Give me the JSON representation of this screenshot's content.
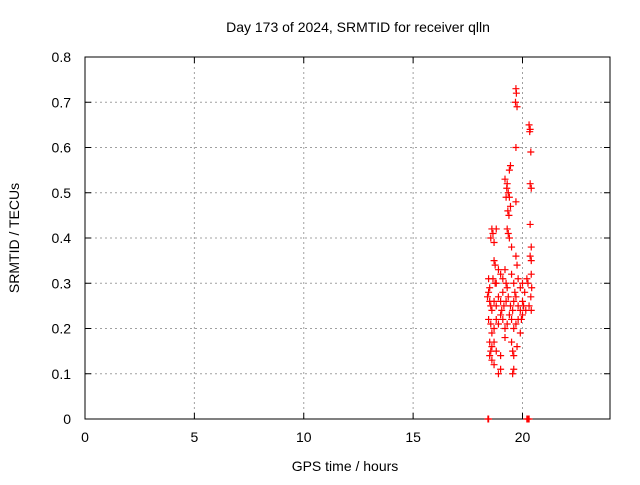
{
  "chart_data": {
    "type": "scatter",
    "title": "Day 173 of 2024, SRMTID for receiver qlln",
    "xlabel": "GPS time / hours",
    "ylabel": "SRMTID / TECUs",
    "xlim": [
      0,
      24
    ],
    "ylim": [
      0,
      0.8
    ],
    "xticks": [
      0,
      5,
      10,
      15,
      20
    ],
    "xtick_labels": [
      "0",
      "5",
      "10",
      "15",
      "20"
    ],
    "yticks": [
      0,
      0.1,
      0.2,
      0.3,
      0.4,
      0.5,
      0.6,
      0.7,
      0.8
    ],
    "ytick_labels": [
      "0",
      "0.1",
      "0.2",
      "0.3",
      "0.4",
      "0.5",
      "0.6",
      "0.7",
      "0.8"
    ],
    "grid": true,
    "marker": "plus",
    "color": "#ff0000",
    "series": [
      {
        "name": "SRMTID",
        "points": [
          [
            18.42,
            0.0
          ],
          [
            18.45,
            0.0
          ],
          [
            20.2,
            0.0
          ],
          [
            20.25,
            0.0
          ],
          [
            20.3,
            0.0
          ],
          [
            19.7,
            0.73
          ],
          [
            19.72,
            0.72
          ],
          [
            19.68,
            0.7
          ],
          [
            19.75,
            0.69
          ],
          [
            20.3,
            0.65
          ],
          [
            20.35,
            0.64
          ],
          [
            20.33,
            0.635
          ],
          [
            20.38,
            0.59
          ],
          [
            19.7,
            0.6
          ],
          [
            19.45,
            0.56
          ],
          [
            19.4,
            0.55
          ],
          [
            19.3,
            0.52
          ],
          [
            19.35,
            0.5
          ],
          [
            19.28,
            0.51
          ],
          [
            19.4,
            0.49
          ],
          [
            19.45,
            0.47
          ],
          [
            19.33,
            0.46
          ],
          [
            19.38,
            0.45
          ],
          [
            19.7,
            0.48
          ],
          [
            20.35,
            0.52
          ],
          [
            20.4,
            0.51
          ],
          [
            19.2,
            0.53
          ],
          [
            19.25,
            0.49
          ],
          [
            18.6,
            0.42
          ],
          [
            18.65,
            0.41
          ],
          [
            18.55,
            0.4
          ],
          [
            18.7,
            0.39
          ],
          [
            18.8,
            0.42
          ],
          [
            19.3,
            0.42
          ],
          [
            19.35,
            0.41
          ],
          [
            19.4,
            0.4
          ],
          [
            19.5,
            0.38
          ],
          [
            20.35,
            0.43
          ],
          [
            20.4,
            0.38
          ],
          [
            20.35,
            0.36
          ],
          [
            20.4,
            0.35
          ],
          [
            19.7,
            0.36
          ],
          [
            19.75,
            0.34
          ],
          [
            18.7,
            0.35
          ],
          [
            18.75,
            0.34
          ],
          [
            18.65,
            0.31
          ],
          [
            18.8,
            0.3
          ],
          [
            18.9,
            0.33
          ],
          [
            19.0,
            0.32
          ],
          [
            19.1,
            0.31
          ],
          [
            19.2,
            0.33
          ],
          [
            19.5,
            0.32
          ],
          [
            19.6,
            0.3
          ],
          [
            19.8,
            0.31
          ],
          [
            19.9,
            0.29
          ],
          [
            20.0,
            0.3
          ],
          [
            20.1,
            0.28
          ],
          [
            20.2,
            0.31
          ],
          [
            20.4,
            0.32
          ],
          [
            20.42,
            0.29
          ],
          [
            20.38,
            0.27
          ],
          [
            18.45,
            0.31
          ],
          [
            18.5,
            0.29
          ],
          [
            18.4,
            0.27
          ],
          [
            18.5,
            0.26
          ],
          [
            18.55,
            0.25
          ],
          [
            18.6,
            0.24
          ],
          [
            18.7,
            0.26
          ],
          [
            18.8,
            0.25
          ],
          [
            18.9,
            0.27
          ],
          [
            19.0,
            0.26
          ],
          [
            19.05,
            0.24
          ],
          [
            19.15,
            0.25
          ],
          [
            19.25,
            0.26
          ],
          [
            19.35,
            0.27
          ],
          [
            19.45,
            0.25
          ],
          [
            19.55,
            0.24
          ],
          [
            19.6,
            0.26
          ],
          [
            19.7,
            0.27
          ],
          [
            19.8,
            0.25
          ],
          [
            19.9,
            0.24
          ],
          [
            20.0,
            0.26
          ],
          [
            20.05,
            0.25
          ],
          [
            20.15,
            0.24
          ],
          [
            20.3,
            0.25
          ],
          [
            20.4,
            0.24
          ],
          [
            18.45,
            0.22
          ],
          [
            18.55,
            0.21
          ],
          [
            18.6,
            0.19
          ],
          [
            18.7,
            0.2
          ],
          [
            18.8,
            0.22
          ],
          [
            18.9,
            0.21
          ],
          [
            19.0,
            0.23
          ],
          [
            19.1,
            0.22
          ],
          [
            19.2,
            0.2
          ],
          [
            19.3,
            0.21
          ],
          [
            19.4,
            0.23
          ],
          [
            19.5,
            0.22
          ],
          [
            19.6,
            0.2
          ],
          [
            19.7,
            0.21
          ],
          [
            19.8,
            0.22
          ],
          [
            19.9,
            0.19
          ],
          [
            20.0,
            0.23
          ],
          [
            18.5,
            0.17
          ],
          [
            18.6,
            0.16
          ],
          [
            18.55,
            0.15
          ],
          [
            18.5,
            0.14
          ],
          [
            18.7,
            0.17
          ],
          [
            18.8,
            0.15
          ],
          [
            19.0,
            0.14
          ],
          [
            19.2,
            0.18
          ],
          [
            19.5,
            0.17
          ],
          [
            19.55,
            0.15
          ],
          [
            19.6,
            0.14
          ],
          [
            19.75,
            0.16
          ],
          [
            18.6,
            0.13
          ],
          [
            18.7,
            0.12
          ],
          [
            18.9,
            0.1
          ],
          [
            19.0,
            0.11
          ],
          [
            19.55,
            0.1
          ],
          [
            19.6,
            0.11
          ],
          [
            18.45,
            0.28
          ],
          [
            19.3,
            0.29
          ],
          [
            19.65,
            0.28
          ],
          [
            19.95,
            0.22
          ],
          [
            20.25,
            0.3
          ],
          [
            18.75,
            0.3
          ],
          [
            19.1,
            0.28
          ],
          [
            19.25,
            0.3
          ]
        ]
      }
    ]
  }
}
